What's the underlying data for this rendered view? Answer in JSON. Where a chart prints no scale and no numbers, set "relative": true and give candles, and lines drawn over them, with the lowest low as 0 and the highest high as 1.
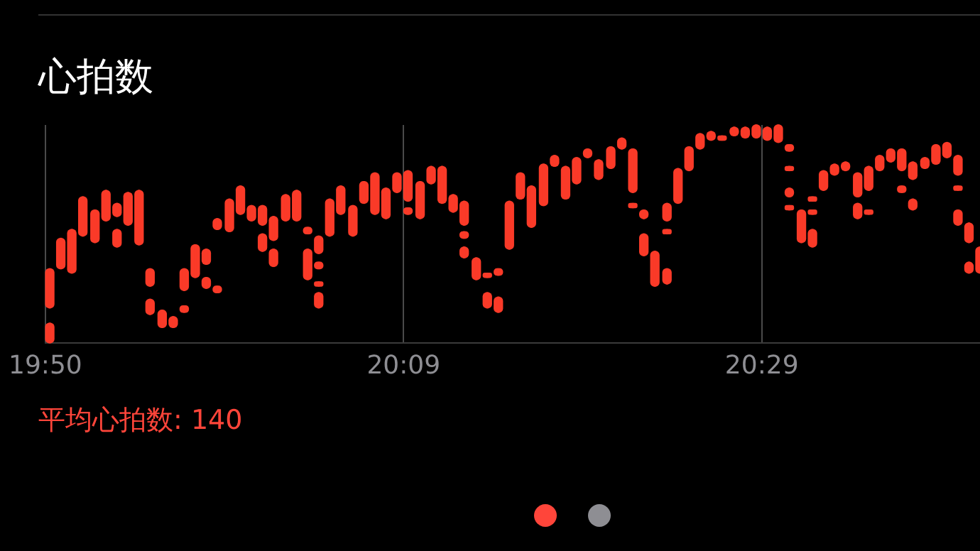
{
  "chart_data": {
    "type": "candlestick",
    "title": "心拍数",
    "relative": true,
    "grid": "x",
    "tick_labels": "x",
    "color": "#fa3a28",
    "annotations": [
      "平均心拍数: 140"
    ],
    "xlim": [
      19.833,
      20.681
    ],
    "xticks": [
      {
        "value": 19.833,
        "label": "19:50"
      },
      {
        "value": 20.158,
        "label": "20:09"
      },
      {
        "value": 20.483,
        "label": "20:29"
      }
    ],
    "x": [
      19.837,
      19.837,
      19.847,
      19.857,
      19.867,
      19.878,
      19.888,
      19.898,
      19.898,
      19.908,
      19.918,
      19.928,
      19.928,
      19.939,
      19.949,
      19.959,
      19.959,
      19.969,
      19.979,
      19.979,
      19.989,
      19.989,
      20.0,
      20.01,
      20.02,
      20.03,
      20.03,
      20.04,
      20.04,
      20.051,
      20.061,
      20.071,
      20.071,
      20.081,
      20.081,
      20.081,
      20.081,
      20.091,
      20.101,
      20.112,
      20.122,
      20.132,
      20.142,
      20.152,
      20.162,
      20.162,
      20.173,
      20.183,
      20.193,
      20.203,
      20.213,
      20.213,
      20.213,
      20.224,
      20.234,
      20.234,
      20.244,
      20.244,
      20.254,
      20.264,
      20.274,
      20.285,
      20.295,
      20.305,
      20.315,
      20.325,
      20.335,
      20.346,
      20.356,
      20.366,
      20.366,
      20.376,
      20.376,
      20.386,
      20.397,
      20.397,
      20.397,
      20.407,
      20.417,
      20.427,
      20.437,
      20.447,
      20.458,
      20.468,
      20.478,
      20.488,
      20.498,
      20.508,
      20.508,
      20.508,
      20.508,
      20.519,
      20.529,
      20.529,
      20.529,
      20.539,
      20.549,
      20.559,
      20.57,
      20.57,
      20.58,
      20.58,
      20.59,
      20.6,
      20.61,
      20.61,
      20.62,
      20.62,
      20.631,
      20.641,
      20.651,
      20.661,
      20.661,
      20.661,
      20.671,
      20.671,
      20.681
    ],
    "ohlc": [
      [
        0.16,
        0.34,
        0.16,
        0.34
      ],
      [
        0,
        0.09,
        0,
        0.09
      ],
      [
        0.34,
        0.48,
        0.34,
        0.48
      ],
      [
        0.32,
        0.52,
        0.32,
        0.52
      ],
      [
        0.49,
        0.67,
        0.49,
        0.67
      ],
      [
        0.46,
        0.61,
        0.46,
        0.61
      ],
      [
        0.56,
        0.7,
        0.56,
        0.7
      ],
      [
        0.58,
        0.64,
        0.58,
        0.64
      ],
      [
        0.44,
        0.52,
        0.44,
        0.52
      ],
      [
        0.54,
        0.69,
        0.54,
        0.69
      ],
      [
        0.45,
        0.7,
        0.45,
        0.7
      ],
      [
        0.26,
        0.34,
        0.26,
        0.34
      ],
      [
        0.13,
        0.2,
        0.13,
        0.2
      ],
      [
        0.07,
        0.15,
        0.07,
        0.15
      ],
      [
        0.07,
        0.12,
        0.07,
        0.12
      ],
      [
        0.24,
        0.34,
        0.24,
        0.34
      ],
      [
        0.14,
        0.17,
        0.14,
        0.17
      ],
      [
        0.3,
        0.45,
        0.3,
        0.45
      ],
      [
        0.36,
        0.43,
        0.36,
        0.43
      ],
      [
        0.25,
        0.3,
        0.25,
        0.3
      ],
      [
        0.52,
        0.57,
        0.52,
        0.57
      ],
      [
        0.23,
        0.26,
        0.23,
        0.26
      ],
      [
        0.51,
        0.66,
        0.51,
        0.66
      ],
      [
        0.59,
        0.72,
        0.59,
        0.72
      ],
      [
        0.56,
        0.63,
        0.56,
        0.63
      ],
      [
        0.54,
        0.63,
        0.54,
        0.63
      ],
      [
        0.42,
        0.5,
        0.42,
        0.5
      ],
      [
        0.47,
        0.58,
        0.47,
        0.58
      ],
      [
        0.35,
        0.43,
        0.35,
        0.43
      ],
      [
        0.56,
        0.68,
        0.56,
        0.68
      ],
      [
        0.56,
        0.7,
        0.56,
        0.7
      ],
      [
        0.5,
        0.53,
        0.5,
        0.53
      ],
      [
        0.29,
        0.43,
        0.29,
        0.43
      ],
      [
        0.41,
        0.49,
        0.41,
        0.49
      ],
      [
        0.34,
        0.37,
        0.34,
        0.37
      ],
      [
        0.26,
        0.28,
        0.26,
        0.28
      ],
      [
        0.16,
        0.23,
        0.16,
        0.23
      ],
      [
        0.49,
        0.66,
        0.49,
        0.66
      ],
      [
        0.59,
        0.72,
        0.59,
        0.72
      ],
      [
        0.49,
        0.63,
        0.49,
        0.63
      ],
      [
        0.64,
        0.74,
        0.64,
        0.74
      ],
      [
        0.59,
        0.78,
        0.59,
        0.78
      ],
      [
        0.57,
        0.71,
        0.57,
        0.71
      ],
      [
        0.69,
        0.78,
        0.69,
        0.78
      ],
      [
        0.65,
        0.79,
        0.65,
        0.79
      ],
      [
        0.59,
        0.62,
        0.59,
        0.62
      ],
      [
        0.57,
        0.74,
        0.57,
        0.74
      ],
      [
        0.73,
        0.81,
        0.73,
        0.81
      ],
      [
        0.64,
        0.81,
        0.64,
        0.81
      ],
      [
        0.6,
        0.68,
        0.6,
        0.68
      ],
      [
        0.54,
        0.65,
        0.54,
        0.65
      ],
      [
        0.48,
        0.51,
        0.48,
        0.51
      ],
      [
        0.39,
        0.44,
        0.39,
        0.44
      ],
      [
        0.29,
        0.39,
        0.29,
        0.39
      ],
      [
        0.3,
        0.32,
        0.3,
        0.32
      ],
      [
        0.16,
        0.23,
        0.16,
        0.23
      ],
      [
        0.31,
        0.34,
        0.31,
        0.34
      ],
      [
        0.14,
        0.21,
        0.14,
        0.21
      ],
      [
        0.43,
        0.65,
        0.43,
        0.65
      ],
      [
        0.66,
        0.78,
        0.66,
        0.78
      ],
      [
        0.53,
        0.72,
        0.53,
        0.72
      ],
      [
        0.63,
        0.82,
        0.63,
        0.82
      ],
      [
        0.81,
        0.86,
        0.81,
        0.86
      ],
      [
        0.66,
        0.81,
        0.66,
        0.81
      ],
      [
        0.73,
        0.85,
        0.73,
        0.85
      ],
      [
        0.85,
        0.89,
        0.85,
        0.89
      ],
      [
        0.75,
        0.84,
        0.75,
        0.84
      ],
      [
        0.8,
        0.9,
        0.8,
        0.9
      ],
      [
        0.89,
        0.94,
        0.89,
        0.94
      ],
      [
        0.69,
        0.89,
        0.69,
        0.89
      ],
      [
        0.62,
        0.64,
        0.62,
        0.64
      ],
      [
        0.57,
        0.61,
        0.57,
        0.61
      ],
      [
        0.4,
        0.5,
        0.4,
        0.5
      ],
      [
        0.26,
        0.42,
        0.26,
        0.42
      ],
      [
        0.56,
        0.64,
        0.56,
        0.64
      ],
      [
        0.5,
        0.52,
        0.5,
        0.52
      ],
      [
        0.27,
        0.34,
        0.27,
        0.34
      ],
      [
        0.64,
        0.8,
        0.64,
        0.8
      ],
      [
        0.79,
        0.9,
        0.79,
        0.9
      ],
      [
        0.89,
        0.96,
        0.89,
        0.96
      ],
      [
        0.93,
        0.97,
        0.93,
        0.97
      ],
      [
        0.93,
        0.95,
        0.93,
        0.95
      ],
      [
        0.95,
        0.99,
        0.95,
        0.99
      ],
      [
        0.94,
        0.99,
        0.94,
        0.99
      ],
      [
        0.94,
        1.0,
        0.94,
        1.0
      ],
      [
        0.93,
        0.99,
        0.93,
        0.99
      ],
      [
        0.92,
        1.0,
        0.92,
        1.0
      ],
      [
        0.88,
        0.91,
        0.88,
        0.91
      ],
      [
        0.79,
        0.81,
        0.79,
        0.81
      ],
      [
        0.67,
        0.71,
        0.67,
        0.71
      ],
      [
        0.61,
        0.63,
        0.61,
        0.63
      ],
      [
        0.46,
        0.61,
        0.46,
        0.61
      ],
      [
        0.65,
        0.67,
        0.65,
        0.67
      ],
      [
        0.59,
        0.61,
        0.59,
        0.61
      ],
      [
        0.44,
        0.52,
        0.44,
        0.52
      ],
      [
        0.7,
        0.79,
        0.7,
        0.79
      ],
      [
        0.77,
        0.82,
        0.77,
        0.82
      ],
      [
        0.79,
        0.83,
        0.79,
        0.83
      ],
      [
        0.67,
        0.78,
        0.67,
        0.78
      ],
      [
        0.57,
        0.64,
        0.57,
        0.64
      ],
      [
        0.7,
        0.81,
        0.7,
        0.81
      ],
      [
        0.59,
        0.61,
        0.59,
        0.61
      ],
      [
        0.79,
        0.86,
        0.79,
        0.86
      ],
      [
        0.83,
        0.89,
        0.83,
        0.89
      ],
      [
        0.79,
        0.89,
        0.79,
        0.89
      ],
      [
        0.69,
        0.72,
        0.69,
        0.72
      ],
      [
        0.75,
        0.83,
        0.75,
        0.83
      ],
      [
        0.61,
        0.66,
        0.61,
        0.66
      ],
      [
        0.8,
        0.85,
        0.8,
        0.85
      ],
      [
        0.82,
        0.91,
        0.82,
        0.91
      ],
      [
        0.85,
        0.92,
        0.85,
        0.92
      ],
      [
        0.77,
        0.86,
        0.77,
        0.86
      ],
      [
        0.7,
        0.72,
        0.7,
        0.72
      ],
      [
        0.54,
        0.61,
        0.54,
        0.61
      ],
      [
        0.46,
        0.55,
        0.46,
        0.55
      ],
      [
        0.32,
        0.37,
        0.32,
        0.37
      ],
      [
        0.32,
        0.44,
        0.32,
        0.44
      ]
    ]
  }
}
